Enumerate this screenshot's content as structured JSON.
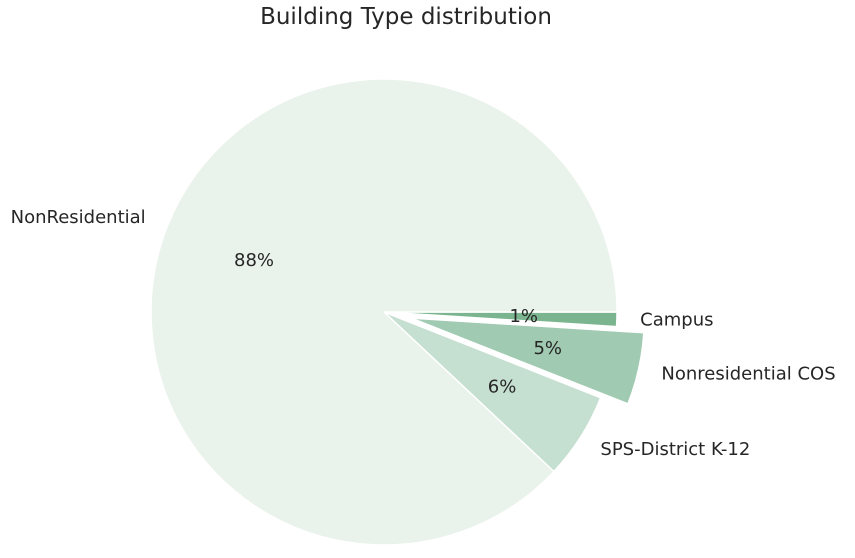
{
  "chart_data": {
    "type": "pie",
    "title": "Building Type distribution",
    "slices": [
      {
        "label": "Campus",
        "value": 1,
        "pct_label": "1%",
        "color": "#7bb58f",
        "exploded": false
      },
      {
        "label": "Nonresidential COS",
        "value": 5,
        "pct_label": "5%",
        "color": "#a0cab1",
        "exploded": true
      },
      {
        "label": "SPS-District K-12",
        "value": 6,
        "pct_label": "6%",
        "color": "#c5dfd0",
        "exploded": false
      },
      {
        "label": "NonResidential",
        "value": 88,
        "pct_label": "88%",
        "color": "#e9f2eb",
        "exploded": false
      }
    ],
    "start_angle_deg": 0,
    "direction": "clockwise",
    "legend": "none"
  }
}
